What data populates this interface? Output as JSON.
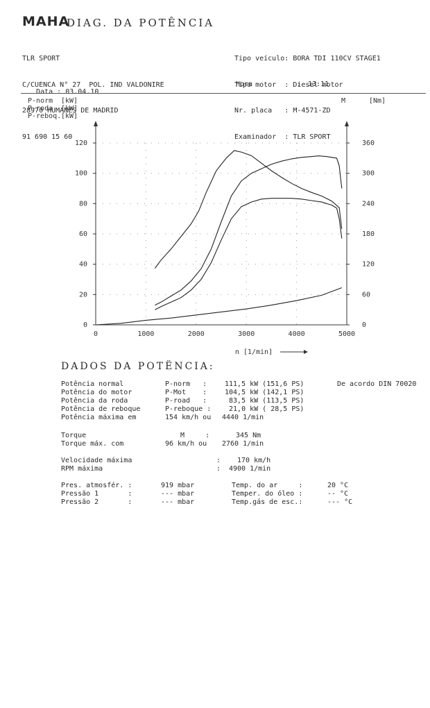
{
  "header": {
    "logo": "MAHA",
    "title": "DIAG. DA POTÊNCIA",
    "company": [
      "TLR SPORT",
      "C/CUENCA N° 27  POL. IND VALDONIRE",
      "28970 HUMANES DE MADRID",
      "91 690 15 60"
    ],
    "vehicle": [
      {
        "label": "Tipo veículo:",
        "value": "BORA TDI 110CV STAGE1"
      },
      {
        "label": "Tipo motor  :",
        "value": "Diesel motor"
      },
      {
        "label": "Nr. placa   :",
        "value": "M-4571-ZD"
      },
      {
        "label": "Examinador  :",
        "value": "TLR SPORT"
      }
    ],
    "date_label": "Data :",
    "date_value": "03.04.10",
    "hour_label": "Hora",
    "hour_sep": ":",
    "hour_value": "13:11"
  },
  "chart_data": {
    "type": "line",
    "left_axis_legend": [
      {
        "name": "P-norm",
        "unit": "[kW]"
      },
      {
        "name": "P-roda",
        "unit": "[kW]"
      },
      {
        "name": "P-reboq.",
        "unit": "[kW]"
      }
    ],
    "right_axis_label": "M",
    "right_axis_unit": "[Nm]",
    "xlabel": "n [1/min]",
    "xlim": [
      0,
      5000
    ],
    "ylim_left": [
      0,
      120
    ],
    "ylim_right": [
      0,
      360
    ],
    "x_ticks": [
      "0",
      "1000",
      "2000",
      "3000",
      "4000",
      "5000"
    ],
    "y_ticks_left": [
      "0",
      "20",
      "40",
      "60",
      "80",
      "100",
      "120"
    ],
    "y_ticks_right": [
      "0",
      "60",
      "120",
      "180",
      "240",
      "300",
      "360"
    ],
    "grid": "dotted",
    "series": [
      {
        "name": "M",
        "axis": "right",
        "points": [
          [
            1180,
            112
          ],
          [
            1300,
            128
          ],
          [
            1500,
            150
          ],
          [
            1700,
            175
          ],
          [
            1900,
            200
          ],
          [
            2050,
            225
          ],
          [
            2200,
            262
          ],
          [
            2400,
            305
          ],
          [
            2600,
            330
          ],
          [
            2760,
            345
          ],
          [
            2900,
            342
          ],
          [
            3100,
            335
          ],
          [
            3300,
            320
          ],
          [
            3500,
            305
          ],
          [
            3700,
            292
          ],
          [
            3900,
            280
          ],
          [
            4100,
            270
          ],
          [
            4300,
            262
          ],
          [
            4500,
            255
          ],
          [
            4700,
            245
          ],
          [
            4850,
            232
          ],
          [
            4900,
            190
          ]
        ]
      },
      {
        "name": "P-norm",
        "axis": "left",
        "points": [
          [
            1180,
            13
          ],
          [
            1300,
            15
          ],
          [
            1500,
            19
          ],
          [
            1700,
            23
          ],
          [
            1900,
            29
          ],
          [
            2100,
            37
          ],
          [
            2300,
            50
          ],
          [
            2500,
            68
          ],
          [
            2700,
            85
          ],
          [
            2900,
            95
          ],
          [
            3100,
            100
          ],
          [
            3300,
            103
          ],
          [
            3500,
            106
          ],
          [
            3700,
            108
          ],
          [
            3900,
            109.5
          ],
          [
            4100,
            110.5
          ],
          [
            4300,
            111
          ],
          [
            4440,
            111.5
          ],
          [
            4600,
            111
          ],
          [
            4800,
            110
          ],
          [
            4850,
            105
          ],
          [
            4900,
            90
          ]
        ]
      },
      {
        "name": "P-roda",
        "axis": "left",
        "points": [
          [
            1180,
            10
          ],
          [
            1300,
            12
          ],
          [
            1500,
            15
          ],
          [
            1700,
            18
          ],
          [
            1900,
            23
          ],
          [
            2100,
            30
          ],
          [
            2300,
            41
          ],
          [
            2500,
            56
          ],
          [
            2700,
            70
          ],
          [
            2900,
            78
          ],
          [
            3100,
            81
          ],
          [
            3300,
            83
          ],
          [
            3500,
            83.5
          ],
          [
            3700,
            83.5
          ],
          [
            3900,
            83.5
          ],
          [
            4100,
            83
          ],
          [
            4300,
            82
          ],
          [
            4500,
            81
          ],
          [
            4700,
            79
          ],
          [
            4800,
            77
          ],
          [
            4850,
            70
          ],
          [
            4900,
            57
          ]
        ]
      },
      {
        "name": "P-reboq.",
        "axis": "left",
        "points": [
          [
            0,
            0
          ],
          [
            500,
            1
          ],
          [
            1000,
            3
          ],
          [
            1500,
            4.5
          ],
          [
            2000,
            6.5
          ],
          [
            2500,
            8.5
          ],
          [
            3000,
            10.5
          ],
          [
            3500,
            13
          ],
          [
            4000,
            16
          ],
          [
            4500,
            19.5
          ],
          [
            4900,
            24.5
          ]
        ]
      }
    ]
  },
  "results": {
    "title": "DADOS DA POTËNCIA:",
    "power_rows": [
      {
        "label": "Potência normal",
        "code": "P-norm   :",
        "value": "111,5 kW (151,6 PS)",
        "note": "De acordo DIN 70020"
      },
      {
        "label": "Potência do motor",
        "code": "P-Mot    :",
        "value": "104,5 kW (142,1 PS)",
        "note": ""
      },
      {
        "label": "Potência da roda",
        "code": "P-road   :",
        "value": " 83,5 kW (113,5 PS)",
        "note": ""
      },
      {
        "label": "Potência de reboque",
        "code": "P-reboque :",
        "value": " 21,0 kW ( 28,5 PS)",
        "note": ""
      }
    ],
    "max_power": {
      "label": "Potência máxima em",
      "speed": "154 km/h ou",
      "rpm": "4440 1/min"
    },
    "torque": {
      "label": "Torque",
      "code": "M     :",
      "value": "345 Nm"
    },
    "torque_max": {
      "label": "Torque máx. com",
      "speed": "96 km/h ou",
      "rpm": "2760 1/min"
    },
    "vmax": {
      "label": "Velocidade máxima",
      "sep": ":",
      "value": "170 km/h"
    },
    "rpm_max": {
      "label": "RPM máxima",
      "sep": ":",
      "value": "4900 1/min"
    },
    "conditions": [
      {
        "label": "Pres. atmosfér. :",
        "value": "919 mbar",
        "label2": "Temp. do ar     :",
        "value2": "20 °C"
      },
      {
        "label": "Pressão 1       :",
        "value": "--- mbar",
        "label2": "Temper. do óleo :",
        "value2": "-- °C"
      },
      {
        "label": "Pressão 2       :",
        "value": "--- mbar",
        "label2": "Temp.gás de esc.:",
        "value2": "--- °C"
      }
    ]
  }
}
